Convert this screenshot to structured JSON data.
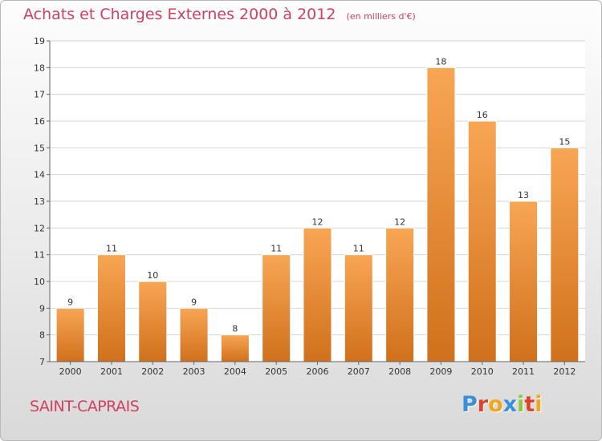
{
  "header": {
    "title": "Achats et Charges Externes 2000 à 2012",
    "unit": "(en milliers d'€)"
  },
  "footer": {
    "town": "SAINT-CAPRAIS",
    "brand": "Proxiti",
    "brand_letters": [
      {
        "ch": "P",
        "color": "#3a8fd9"
      },
      {
        "ch": "r",
        "color": "#e0412b"
      },
      {
        "ch": "o",
        "color": "#f3a51c"
      },
      {
        "ch": "x",
        "color": "#3a8fd9"
      },
      {
        "ch": "i",
        "color": "#8dc63f"
      },
      {
        "ch": "t",
        "color": "#e0412b"
      },
      {
        "ch": "i",
        "color": "#f3a51c"
      }
    ]
  },
  "colors": {
    "bar_top": "#f8a654",
    "bar_bottom": "#d0701c",
    "title": "#d04060",
    "grid": "#d4d4d4"
  },
  "chart_data": {
    "type": "bar",
    "categories": [
      "2000",
      "2001",
      "2002",
      "2003",
      "2004",
      "2005",
      "2006",
      "2007",
      "2008",
      "2009",
      "2010",
      "2011",
      "2012"
    ],
    "values": [
      9,
      11,
      10,
      9,
      8,
      11,
      12,
      11,
      12,
      18,
      16,
      13,
      15
    ],
    "ylim": [
      7,
      19
    ],
    "yticks": [
      7,
      8,
      9,
      10,
      11,
      12,
      13,
      14,
      15,
      16,
      17,
      18,
      19
    ],
    "grid": true,
    "legend": "none"
  }
}
